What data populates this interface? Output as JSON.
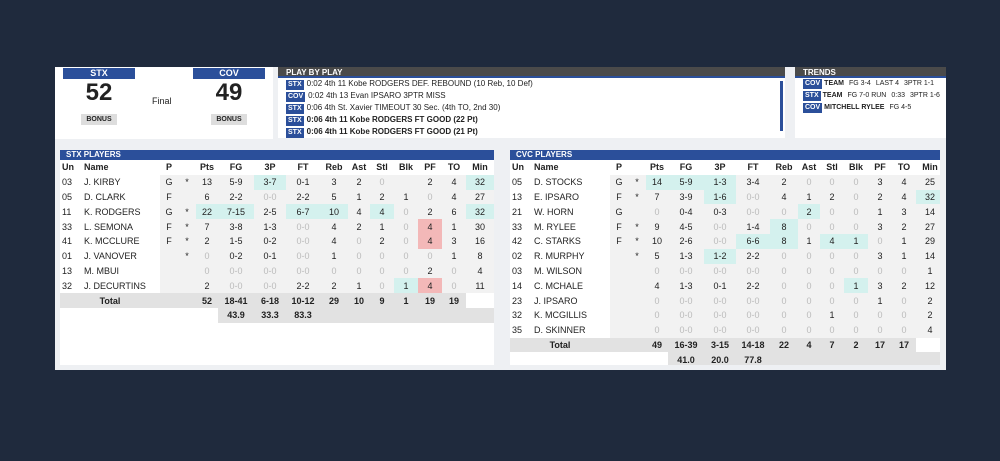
{
  "scoreboard": {
    "home": {
      "team": "STX",
      "score": "52",
      "bonus": "BONUS"
    },
    "status": "Final",
    "away": {
      "team": "COV",
      "score": "49",
      "bonus": "BONUS"
    }
  },
  "play_by_play": {
    "title": "PLAY BY PLAY",
    "items": [
      {
        "team": "STX",
        "text": "0:02 4th 11 Kobe RODGERS DEF. REBOUND (10 Reb, 10 Def)",
        "bold": false
      },
      {
        "team": "COV",
        "text": "0:02 4th 13 Evan IPSARO 3PTR MISS",
        "bold": false
      },
      {
        "team": "STX",
        "text": "0:06 4th St. Xavier TIMEOUT 30 Sec. (4th TO, 2nd 30)",
        "bold": false
      },
      {
        "team": "STX",
        "text": "0:06 4th 11 Kobe RODGERS FT GOOD (22 Pt)",
        "bold": true
      },
      {
        "team": "STX",
        "text": "0:06 4th 11 Kobe RODGERS FT GOOD (21 Pt)",
        "bold": true
      }
    ]
  },
  "trends": {
    "title": "TRENDS",
    "items": [
      {
        "team": "COV",
        "who": "TEAM",
        "stat": "FG 3-4",
        "note": "LAST 4",
        "extra": "3PTR 1-1"
      },
      {
        "team": "STX",
        "who": "TEAM",
        "stat": "FG 7-0 RUN",
        "note": "0:33",
        "extra": "3PTR 1-6"
      },
      {
        "team": "COV",
        "who": "MITCHELL RYLEE",
        "stat": "FG 4-5",
        "note": null,
        "extra": null
      }
    ]
  },
  "stx": {
    "title": "STX PLAYERS",
    "columns": [
      "Un",
      "Name",
      "P",
      null,
      "Pts",
      "FG",
      "3P",
      "FT",
      "Reb",
      "Ast",
      "Stl",
      "Blk",
      "PF",
      "TO",
      "Min"
    ],
    "rows": [
      [
        "03",
        "J. KIRBY",
        "G",
        "*",
        "13",
        "5-9",
        "3-7",
        "0-1",
        "3",
        "2",
        "0",
        "",
        "2",
        "4",
        "32"
      ],
      [
        "05",
        "D. CLARK",
        "F",
        null,
        "6",
        "2-2",
        "0-0",
        "2-2",
        "5",
        "1",
        "2",
        "1",
        "0",
        "4",
        "27"
      ],
      [
        "11",
        "K. RODGERS",
        "G",
        "*",
        "22",
        "7-15",
        "2-5",
        "6-7",
        "10",
        "4",
        "4",
        "0",
        "2",
        "6",
        "32"
      ],
      [
        "33",
        "L. SEMONA",
        "F",
        "*",
        "7",
        "3-8",
        "1-3",
        "0-0",
        "4",
        "2",
        "1",
        "0",
        "4",
        "1",
        "30"
      ],
      [
        "41",
        "K. MCCLURE",
        "F",
        "*",
        "2",
        "1-5",
        "0-2",
        "0-0",
        "4",
        "0",
        "2",
        "0",
        "4",
        "3",
        "16"
      ],
      [
        "01",
        "J. VANOVER",
        null,
        "*",
        "0",
        "0-2",
        "0-1",
        "0-0",
        "1",
        "0",
        "0",
        "0",
        "0",
        "1",
        "8"
      ],
      [
        "13",
        "M. MBUI",
        null,
        null,
        "0",
        "0-0",
        "0-0",
        "0-0",
        "0",
        "0",
        "0",
        "0",
        "2",
        "0",
        "4"
      ],
      [
        "32",
        "J. DECURTINS",
        null,
        null,
        "2",
        "0-0",
        "0-0",
        "2-2",
        "2",
        "1",
        "0",
        "1",
        "4",
        "0",
        "11"
      ]
    ],
    "total": {
      "label": "Total",
      "values": [
        "52",
        "18-41",
        "6-18",
        "10-12",
        "29",
        "10",
        "9",
        "1",
        "19",
        "19"
      ],
      "pct": [
        "43.9",
        "33.3",
        "83.3"
      ]
    }
  },
  "cvc": {
    "title": "CVC PLAYERS",
    "columns": [
      "Un",
      "Name",
      "P",
      null,
      "Pts",
      "FG",
      "3P",
      "FT",
      "Reb",
      "Ast",
      "Stl",
      "Blk",
      "PF",
      "TO",
      "Min"
    ],
    "rows": [
      [
        "05",
        "D. STOCKS",
        "G",
        "*",
        "14",
        "5-9",
        "1-3",
        "3-4",
        "2",
        "0",
        "0",
        "0",
        "3",
        "4",
        "25"
      ],
      [
        "13",
        "E. IPSARO",
        "F",
        "*",
        "7",
        "3-9",
        "1-6",
        "0-0",
        "4",
        "1",
        "2",
        "0",
        "2",
        "4",
        "32"
      ],
      [
        "21",
        "W. HORN",
        "G",
        null,
        "0",
        "0-4",
        "0-3",
        "0-0",
        "0",
        "2",
        "0",
        "0",
        "1",
        "3",
        "14"
      ],
      [
        "33",
        "M. RYLEE",
        "F",
        "*",
        "9",
        "4-5",
        "0-0",
        "1-4",
        "8",
        "0",
        "0",
        "0",
        "3",
        "2",
        "27"
      ],
      [
        "42",
        "C. STARKS",
        "F",
        "*",
        "10",
        "2-6",
        "0-0",
        "6-6",
        "8",
        "1",
        "4",
        "1",
        "0",
        "1",
        "29"
      ],
      [
        "02",
        "R. MURPHY",
        null,
        "*",
        "5",
        "1-3",
        "1-2",
        "2-2",
        "0",
        "0",
        "0",
        "0",
        "3",
        "1",
        "14"
      ],
      [
        "03",
        "M. WILSON",
        null,
        null,
        "0",
        "0-0",
        "0-0",
        "0-0",
        "0",
        "0",
        "0",
        "0",
        "0",
        "0",
        "1"
      ],
      [
        "14",
        "C. MCHALE",
        null,
        null,
        "4",
        "1-3",
        "0-1",
        "2-2",
        "0",
        "0",
        "0",
        "1",
        "3",
        "2",
        "12"
      ],
      [
        "23",
        "J. IPSARO",
        null,
        null,
        "0",
        "0-0",
        "0-0",
        "0-0",
        "0",
        "0",
        "0",
        "0",
        "1",
        "0",
        "2"
      ],
      [
        "32",
        "K. MCGILLIS",
        null,
        null,
        "0",
        "0-0",
        "0-0",
        "0-0",
        "0",
        "0",
        "1",
        "0",
        "0",
        "0",
        "2"
      ],
      [
        "35",
        "D. SKINNER",
        null,
        null,
        "0",
        "0-0",
        "0-0",
        "0-0",
        "0",
        "0",
        "0",
        "0",
        "0",
        "0",
        "4"
      ]
    ],
    "total": {
      "label": "Total",
      "values": [
        "49",
        "16-39",
        "3-15",
        "14-18",
        "22",
        "4",
        "7",
        "2",
        "17",
        "17"
      ],
      "pct": [
        "41.0",
        "20.0",
        "77.8"
      ]
    }
  }
}
